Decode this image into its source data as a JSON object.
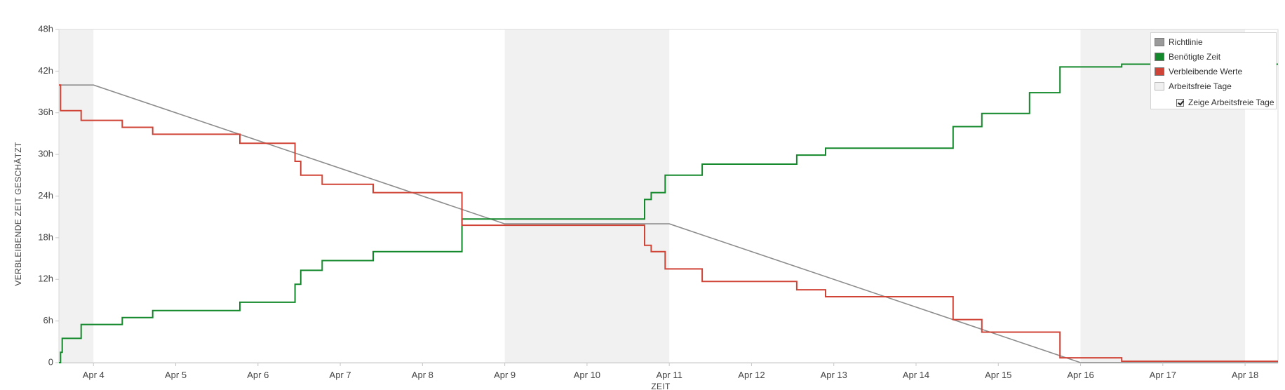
{
  "chart_data": {
    "type": "line",
    "xlabel": "ZEIT",
    "ylabel": "VERBLEIBENDE ZEIT GESCHÄTZT",
    "x_range": [
      3.58,
      18.4
    ],
    "ylim": [
      0,
      48
    ],
    "y_ticks": [
      0,
      6,
      12,
      18,
      24,
      30,
      36,
      42,
      48
    ],
    "y_tick_labels": [
      "0",
      "6h",
      "12h",
      "18h",
      "24h",
      "30h",
      "36h",
      "42h",
      "48h"
    ],
    "x_ticks": [
      4,
      5,
      6,
      7,
      8,
      9,
      10,
      11,
      12,
      13,
      14,
      15,
      16,
      17,
      18
    ],
    "x_tick_labels": [
      "Apr 4",
      "Apr 5",
      "Apr 6",
      "Apr 7",
      "Apr 8",
      "Apr 9",
      "Apr 10",
      "Apr 11",
      "Apr 12",
      "Apr 13",
      "Apr 14",
      "Apr 15",
      "Apr 16",
      "Apr 17",
      "Apr 18"
    ],
    "grid": false,
    "legend_position": "top-right",
    "non_working_periods": [
      [
        3.58,
        4.0
      ],
      [
        9.0,
        11.0
      ],
      [
        16.0,
        18.0
      ]
    ],
    "series": [
      {
        "name": "Richtlinie",
        "color": "#8c8c8c",
        "step": false,
        "points": [
          [
            3.58,
            40
          ],
          [
            4.0,
            40
          ],
          [
            9.0,
            20
          ],
          [
            11.0,
            20
          ],
          [
            16.0,
            0
          ],
          [
            18.4,
            0
          ]
        ]
      },
      {
        "name": "Benötigte Zeit",
        "color": "#14892c",
        "step": true,
        "points": [
          [
            3.58,
            0
          ],
          [
            3.6,
            1.5
          ],
          [
            3.62,
            3.5
          ],
          [
            3.85,
            5.5
          ],
          [
            4.35,
            6.5
          ],
          [
            4.72,
            7.5
          ],
          [
            5.78,
            8.7
          ],
          [
            6.45,
            11.3
          ],
          [
            6.52,
            13.3
          ],
          [
            6.78,
            14.7
          ],
          [
            7.4,
            16.0
          ],
          [
            8.48,
            20.7
          ],
          [
            10.7,
            23.5
          ],
          [
            10.78,
            24.5
          ],
          [
            10.95,
            27.0
          ],
          [
            11.4,
            28.6
          ],
          [
            12.55,
            29.9
          ],
          [
            12.9,
            30.9
          ],
          [
            14.45,
            34.0
          ],
          [
            14.8,
            35.9
          ],
          [
            15.38,
            38.9
          ],
          [
            15.75,
            42.6
          ],
          [
            16.5,
            43.0
          ],
          [
            18.4,
            43.0
          ]
        ]
      },
      {
        "name": "Verbleibende Werte",
        "color": "#d04437",
        "step": true,
        "points": [
          [
            3.58,
            40
          ],
          [
            3.6,
            36.3
          ],
          [
            3.85,
            34.9
          ],
          [
            4.35,
            33.9
          ],
          [
            4.72,
            32.9
          ],
          [
            5.78,
            31.6
          ],
          [
            6.45,
            29.0
          ],
          [
            6.52,
            27.0
          ],
          [
            6.78,
            25.7
          ],
          [
            7.4,
            24.5
          ],
          [
            8.48,
            19.8
          ],
          [
            10.7,
            16.9
          ],
          [
            10.78,
            16.0
          ],
          [
            10.95,
            13.5
          ],
          [
            11.4,
            11.7
          ],
          [
            12.55,
            10.5
          ],
          [
            12.9,
            9.5
          ],
          [
            14.45,
            6.2
          ],
          [
            14.8,
            4.4
          ],
          [
            15.75,
            0.7
          ],
          [
            16.5,
            0.2
          ],
          [
            18.4,
            0.2
          ]
        ]
      }
    ]
  },
  "legend": {
    "items": [
      {
        "label": "Richtlinie",
        "color": "#9a9a9a"
      },
      {
        "label": "Benötigte Zeit",
        "color": "#14892c"
      },
      {
        "label": "Verbleibende Werte",
        "color": "#d04437"
      },
      {
        "label": "Arbeitsfreie Tage",
        "color": "#f0f0f0"
      }
    ],
    "checkbox_label": "Zeige Arbeitsfreie Tage"
  }
}
